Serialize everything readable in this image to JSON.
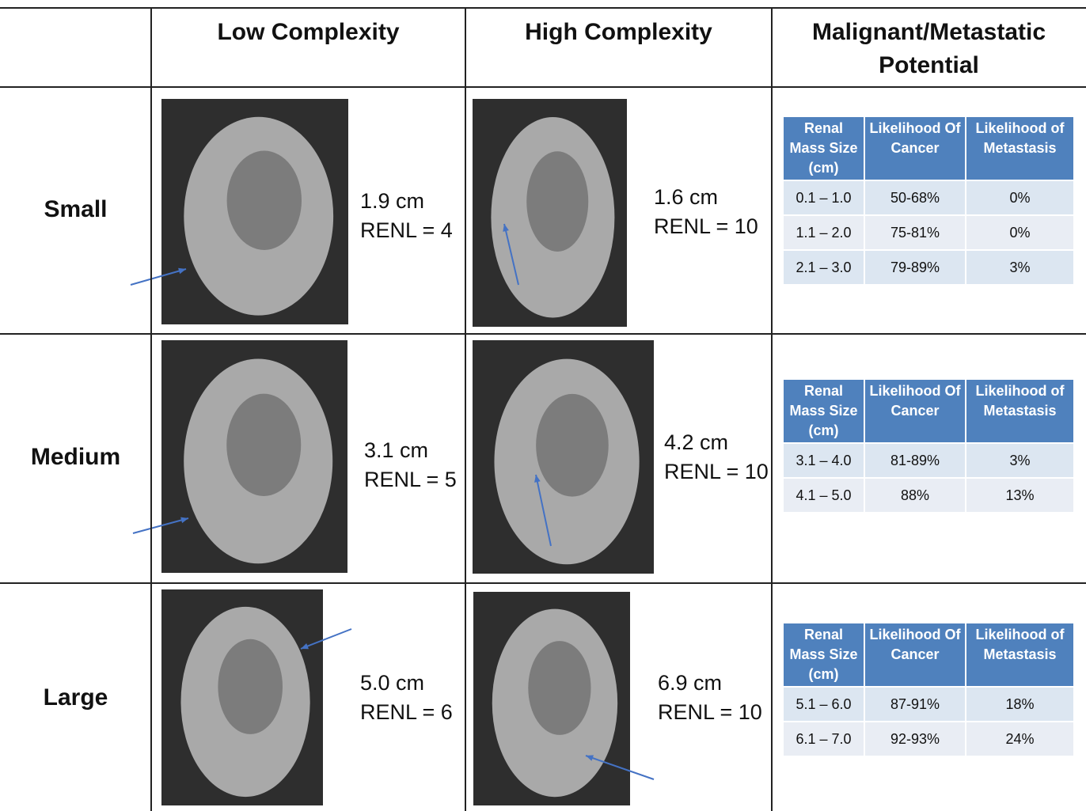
{
  "header": {
    "columns": [
      "Low Complexity",
      "High Complexity",
      "Malignant/Metastatic Potential"
    ]
  },
  "rows": [
    {
      "label": "Small",
      "low": [
        "1.9 cm",
        "RENL = 4"
      ],
      "high": [
        "1.6 cm",
        "RENL = 10"
      ],
      "table": {
        "columns": [
          "Renal Mass Size (cm)",
          "Likelihood Of Cancer",
          "Likelihood of Metastasis"
        ],
        "rows": [
          [
            "0.1 – 1.0",
            "50-68%",
            "0%"
          ],
          [
            "1.1 – 2.0",
            "75-81%",
            "0%"
          ],
          [
            "2.1 – 3.0",
            "79-89%",
            "3%"
          ]
        ]
      }
    },
    {
      "label": "Medium",
      "low": [
        "3.1 cm",
        "RENL = 5"
      ],
      "high": [
        "4.2 cm",
        "RENL = 10"
      ],
      "table": {
        "columns": [
          "Renal Mass Size (cm)",
          "Likelihood Of Cancer",
          "Likelihood of Metastasis"
        ],
        "rows": [
          [
            "3.1 – 4.0",
            "81-89%",
            "3%"
          ],
          [
            "4.1 – 5.0",
            "88%",
            "13%"
          ]
        ]
      }
    },
    {
      "label": "Large",
      "low": [
        "5.0 cm",
        "RENL = 6"
      ],
      "high": [
        "6.9 cm",
        "RENL = 10"
      ],
      "table": {
        "columns": [
          "Renal Mass Size (cm)",
          "Likelihood Of Cancer",
          "Likelihood of Metastasis"
        ],
        "rows": [
          [
            "5.1 – 6.0",
            "87-91%",
            "18%"
          ],
          [
            "6.1 – 7.0",
            "92-93%",
            "24%"
          ]
        ]
      }
    }
  ]
}
